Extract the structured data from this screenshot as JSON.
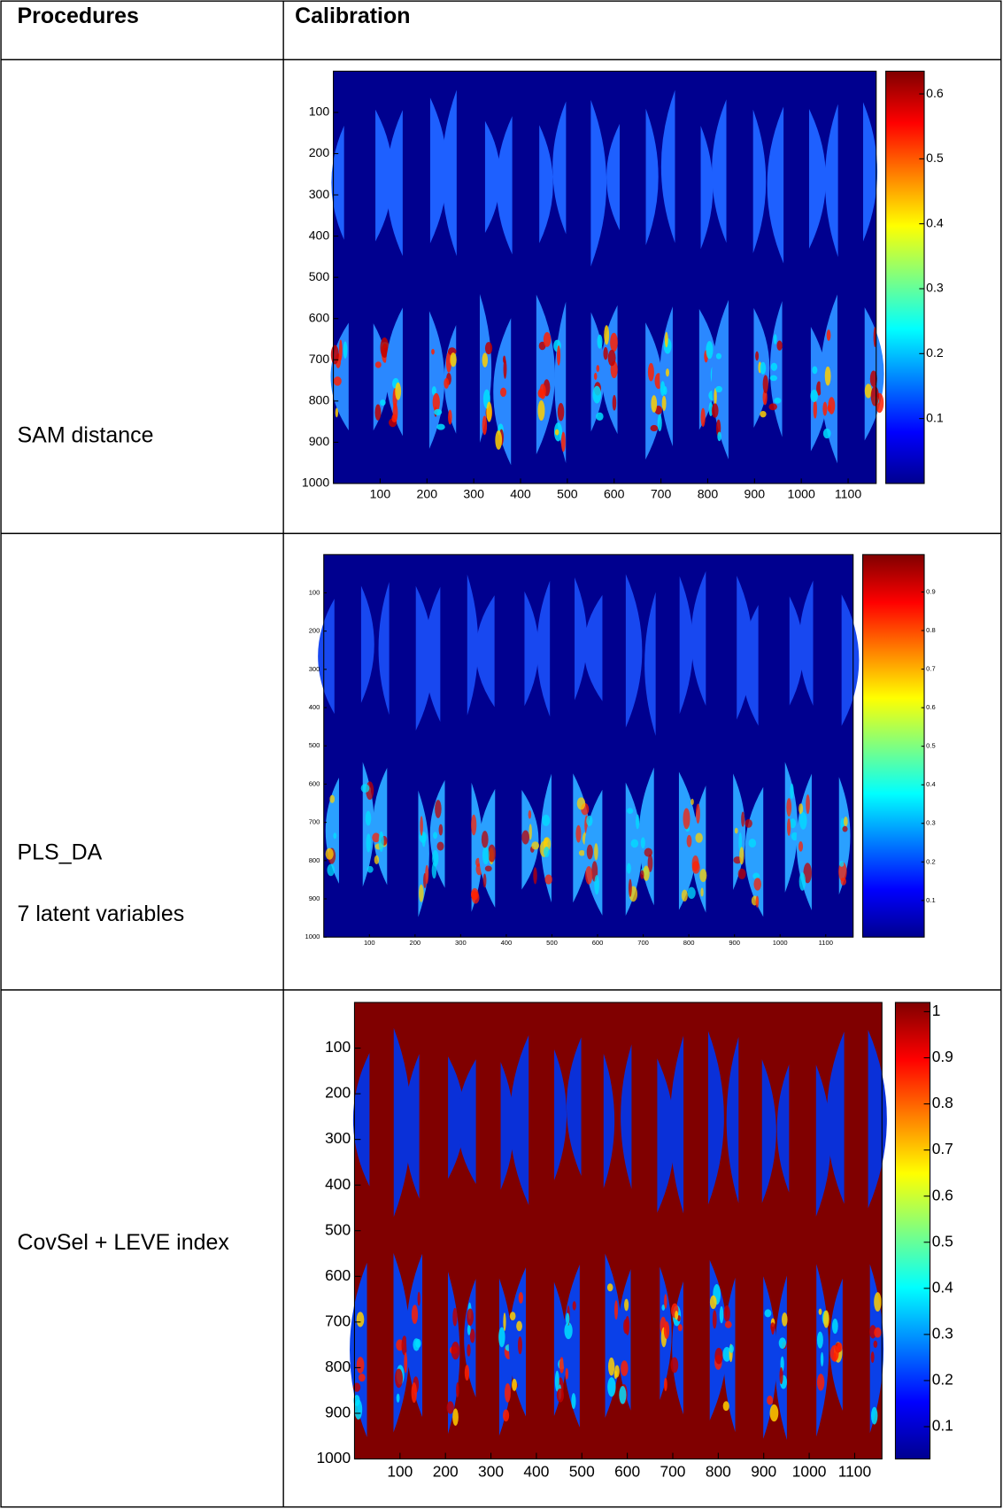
{
  "header": {
    "procedures": "Procedures",
    "calibration": "Calibration"
  },
  "rows": [
    {
      "procedure": [
        "SAM distance"
      ],
      "figure": {
        "xlim": [
          0,
          1160
        ],
        "ylim": [
          0,
          1000
        ],
        "xticks": [
          100,
          200,
          300,
          400,
          500,
          600,
          700,
          800,
          900,
          1000,
          1100
        ],
        "yticks": [
          100,
          200,
          300,
          400,
          500,
          600,
          700,
          800,
          900,
          1000
        ],
        "clim": [
          0,
          0.635
        ],
        "colorbar_ticks": [
          0.1,
          0.2,
          0.3,
          0.4,
          0.5,
          0.6
        ]
      }
    },
    {
      "procedure": [
        "PLS_DA",
        "7 latent variables"
      ],
      "figure": {
        "xlim": [
          0,
          1160
        ],
        "ylim": [
          0,
          1000
        ],
        "xticks": [
          100,
          200,
          300,
          400,
          500,
          600,
          700,
          800,
          900,
          1000,
          1100
        ],
        "yticks": [
          100,
          200,
          300,
          400,
          500,
          600,
          700,
          800,
          900,
          1000
        ],
        "clim": [
          0.005,
          0.997
        ],
        "colorbar_ticks": [
          0.1,
          0.2,
          0.3,
          0.4,
          0.5,
          0.6,
          0.7,
          0.8,
          0.9
        ]
      }
    },
    {
      "procedure": [
        "CovSel + LEVE index"
      ],
      "figure": {
        "xlim": [
          0,
          1160
        ],
        "ylim": [
          0,
          1000
        ],
        "xticks": [
          100,
          200,
          300,
          400,
          500,
          600,
          700,
          800,
          900,
          1000,
          1100
        ],
        "yticks": [
          100,
          200,
          300,
          400,
          500,
          600,
          700,
          800,
          900,
          1000
        ],
        "clim": [
          0.03,
          1.02
        ],
        "colorbar_ticks": [
          0.1,
          0.2,
          0.3,
          0.4,
          0.5,
          0.6,
          0.7,
          0.8,
          0.9,
          1
        ]
      }
    }
  ]
}
